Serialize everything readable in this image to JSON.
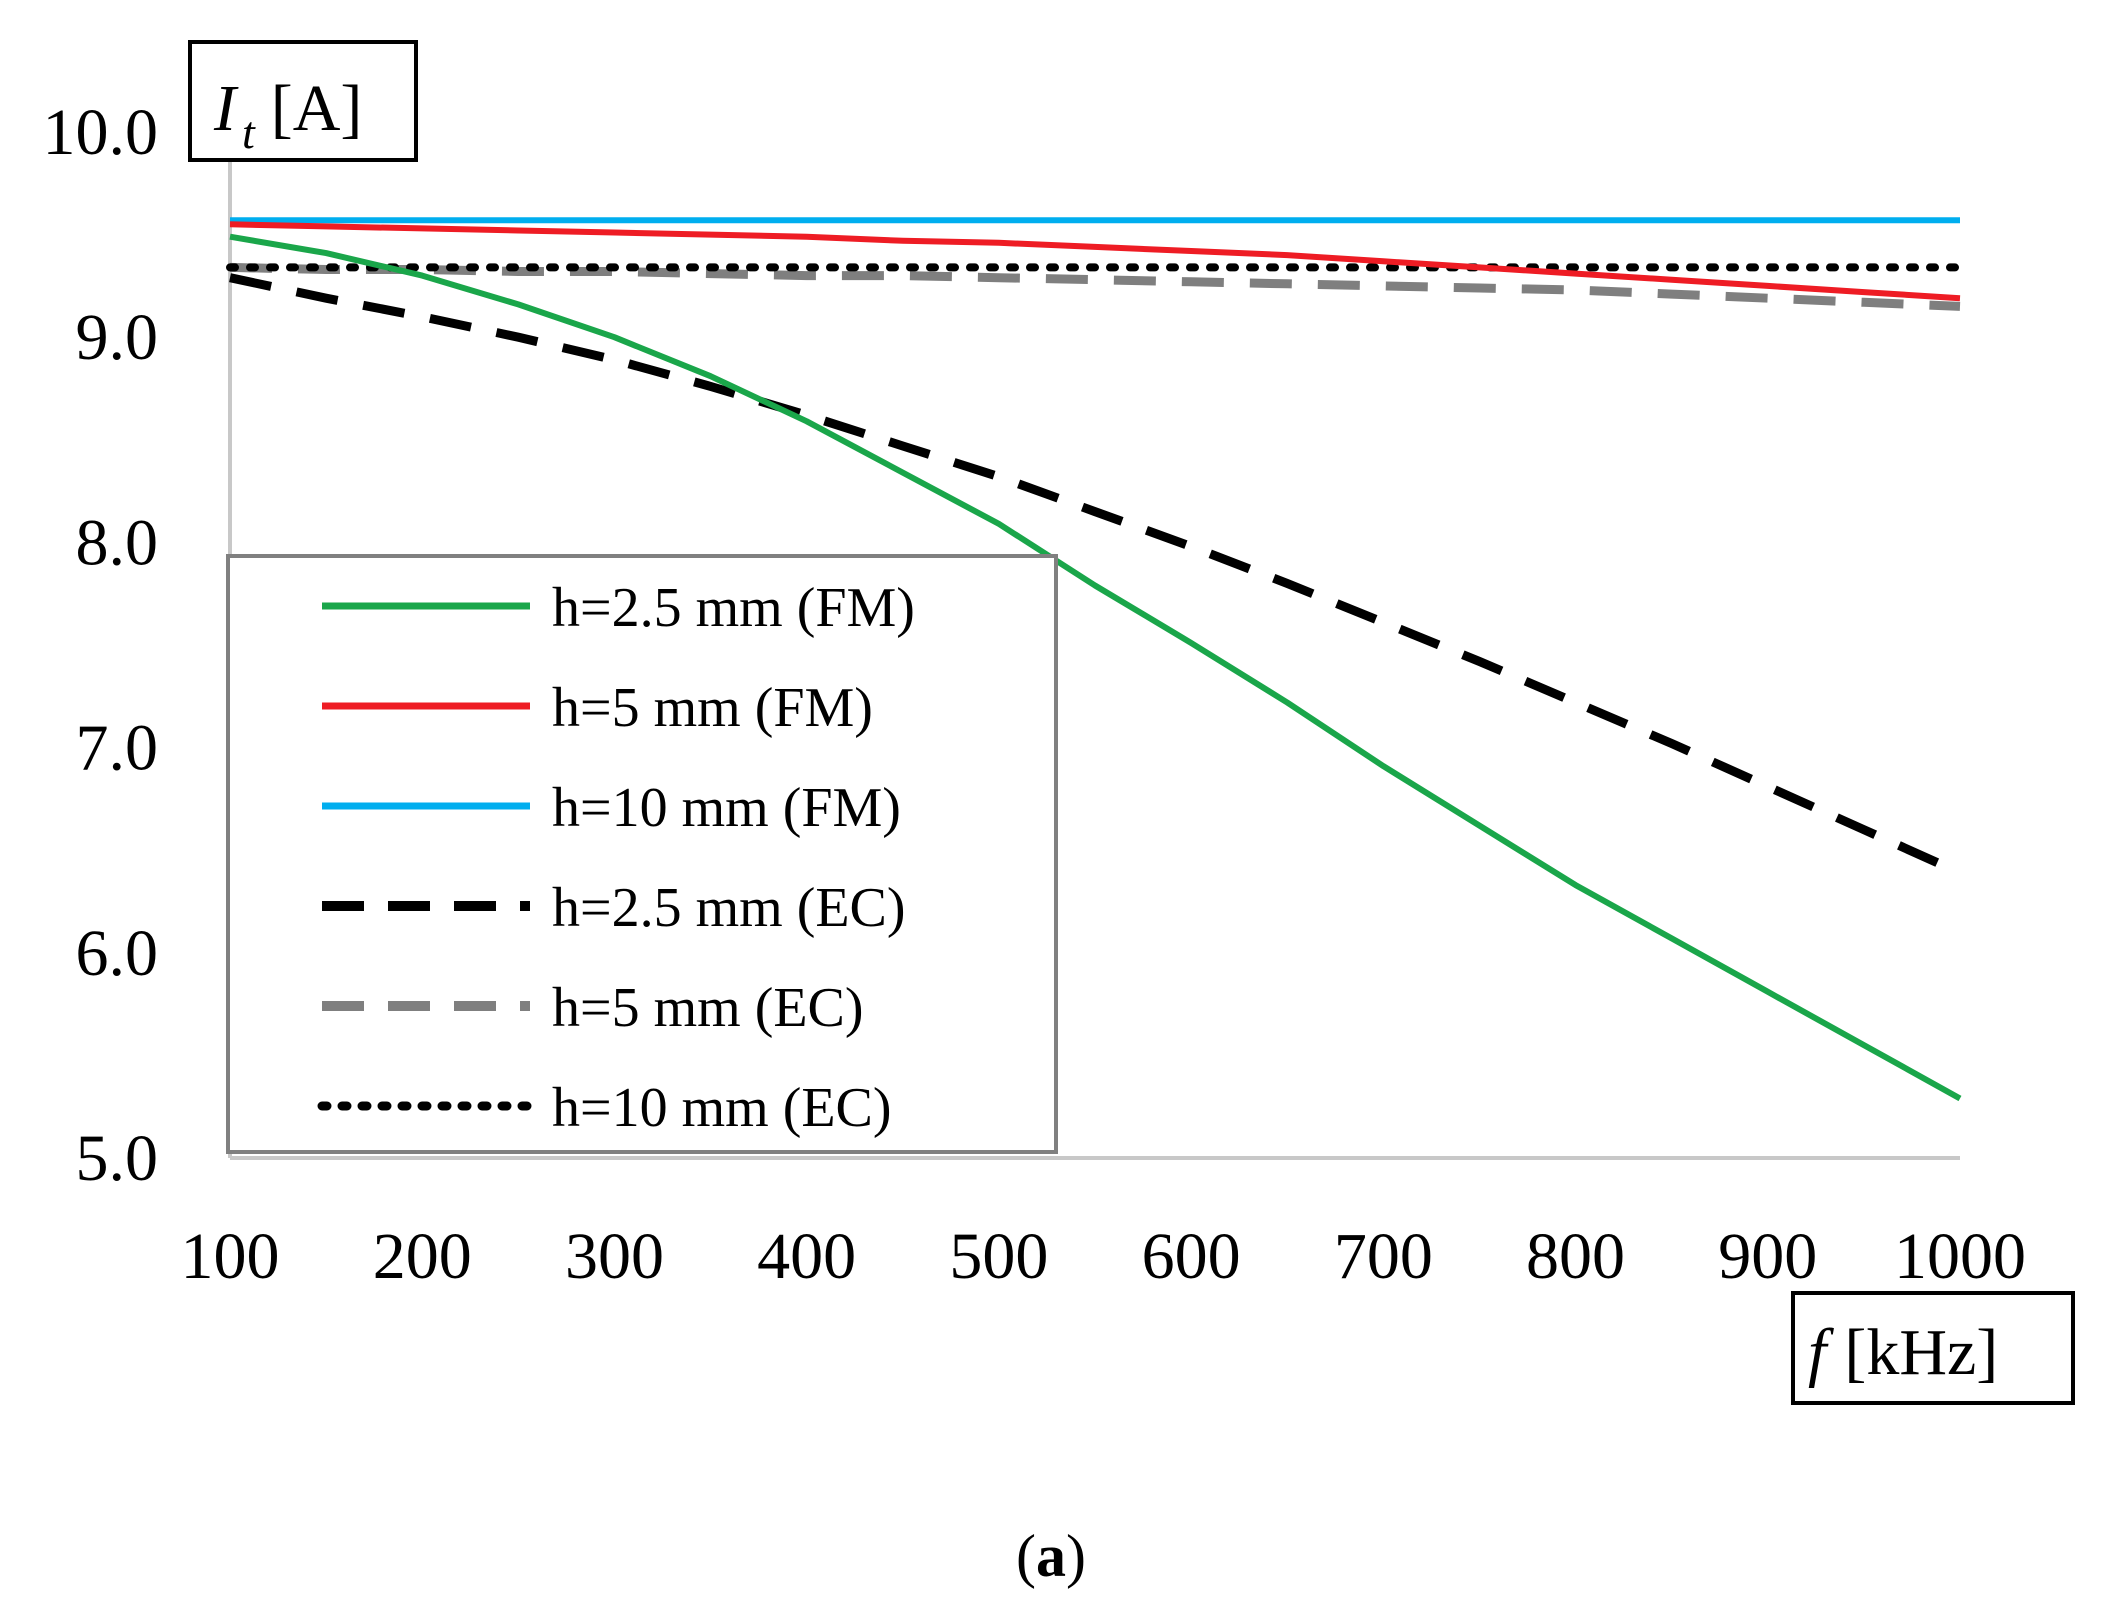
{
  "chart_data": {
    "type": "line",
    "xlabel": {
      "symbol": "f",
      "unit": "[kHz]"
    },
    "ylabel": {
      "symbol": "I",
      "subscript": "t",
      "unit": "[A]"
    },
    "xlim": [
      100,
      1000
    ],
    "ylim": [
      5.0,
      10.0
    ],
    "x_ticks": [
      "100",
      "200",
      "300",
      "400",
      "500",
      "600",
      "700",
      "800",
      "900",
      "1000"
    ],
    "y_ticks": [
      "5.0",
      "6.0",
      "7.0",
      "8.0",
      "9.0",
      "10.0"
    ],
    "x": [
      100,
      150,
      200,
      250,
      300,
      350,
      400,
      450,
      500,
      550,
      600,
      650,
      700,
      750,
      800,
      850,
      900,
      950,
      1000
    ],
    "series": [
      {
        "name": "h=2.5 mm (FM)",
        "color": "#1aa64a",
        "style": "solid",
        "values": [
          9.49,
          9.41,
          9.3,
          9.16,
          9.0,
          8.81,
          8.59,
          8.34,
          8.09,
          7.79,
          7.51,
          7.22,
          6.91,
          6.62,
          6.33,
          6.07,
          5.81,
          5.55,
          5.29
        ]
      },
      {
        "name": "h=5 mm (FM)",
        "color": "#ee1c24",
        "style": "solid",
        "values": [
          9.55,
          9.54,
          9.53,
          9.52,
          9.51,
          9.5,
          9.49,
          9.47,
          9.46,
          9.44,
          9.42,
          9.4,
          9.37,
          9.34,
          9.31,
          9.28,
          9.25,
          9.22,
          9.19
        ]
      },
      {
        "name": "h=10 mm (FM)",
        "color": "#00aeef",
        "style": "solid",
        "values": [
          9.57,
          9.57,
          9.57,
          9.57,
          9.57,
          9.57,
          9.57,
          9.57,
          9.57,
          9.57,
          9.57,
          9.57,
          9.57,
          9.57,
          9.57,
          9.57,
          9.57,
          9.57,
          9.57
        ]
      },
      {
        "name": "h=2.5 mm (EC)",
        "color": "#000000",
        "style": "dash",
        "values": [
          9.29,
          9.19,
          9.1,
          9.0,
          8.89,
          8.76,
          8.62,
          8.47,
          8.32,
          8.15,
          7.98,
          7.8,
          7.61,
          7.42,
          7.22,
          7.02,
          6.81,
          6.6,
          6.39
        ]
      },
      {
        "name": "h=5 mm (EC)",
        "color": "#7f7f7f",
        "style": "dash",
        "values": [
          9.34,
          9.33,
          9.33,
          9.32,
          9.32,
          9.31,
          9.3,
          9.3,
          9.29,
          9.28,
          9.27,
          9.26,
          9.25,
          9.24,
          9.23,
          9.21,
          9.19,
          9.17,
          9.15
        ]
      },
      {
        "name": "h=10 mm (EC)",
        "color": "#000000",
        "style": "dot",
        "values": [
          9.34,
          9.34,
          9.34,
          9.34,
          9.34,
          9.34,
          9.34,
          9.34,
          9.34,
          9.34,
          9.34,
          9.34,
          9.34,
          9.34,
          9.34,
          9.34,
          9.34,
          9.34,
          9.34
        ]
      }
    ],
    "legend_position": "bottom-left",
    "grid": false
  },
  "caption": {
    "open": "(",
    "letter": "a",
    "close": ")"
  }
}
